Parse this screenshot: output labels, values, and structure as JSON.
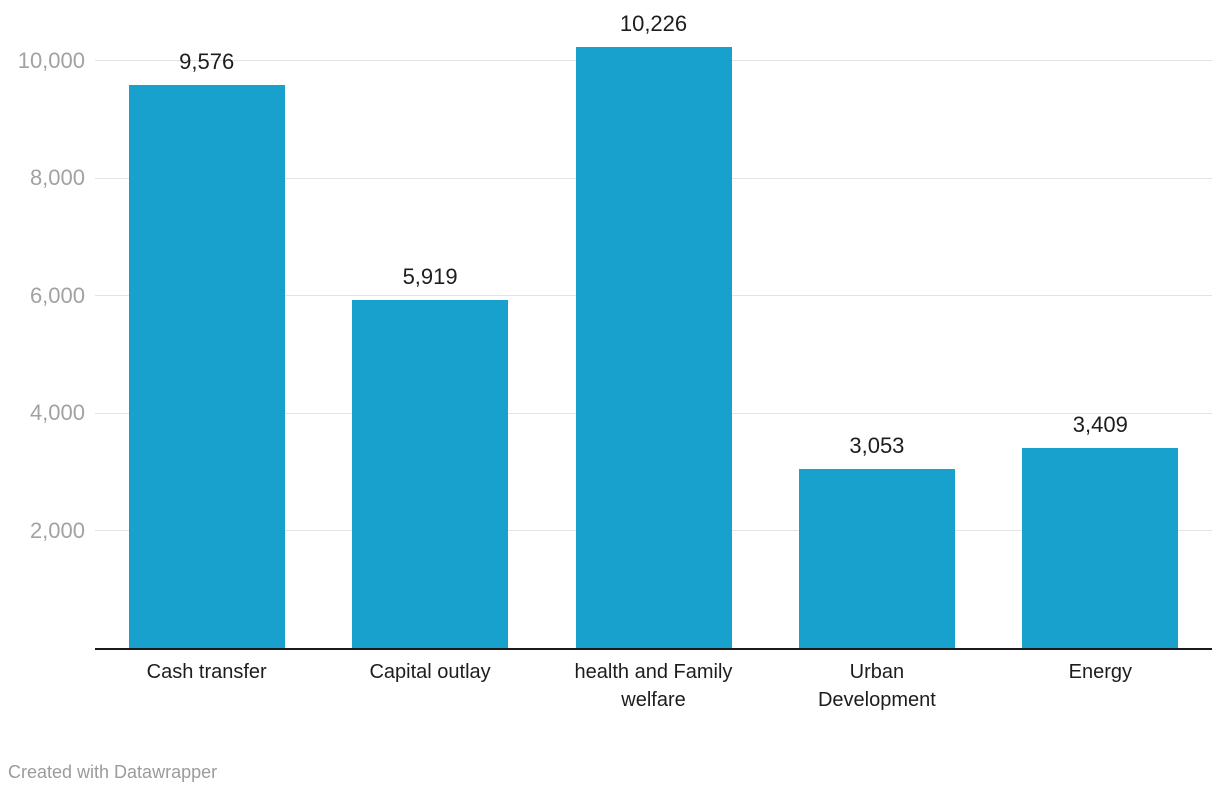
{
  "chart_data": {
    "type": "bar",
    "categories": [
      "Cash transfer",
      "Capital outlay",
      "health and Family\nwelfare",
      "Urban\nDevelopment",
      "Energy"
    ],
    "values": [
      9576,
      5919,
      10226,
      3053,
      3409
    ],
    "value_labels": [
      "9,576",
      "5,919",
      "10,226",
      "3,053",
      "3,409"
    ],
    "y_ticks": [
      2000,
      4000,
      6000,
      8000,
      10000
    ],
    "y_tick_labels": [
      "2,000",
      "4,000",
      "6,000",
      "8,000",
      "10,000"
    ],
    "ylim": [
      0,
      11000
    ],
    "grid": true,
    "legend": "none",
    "title": "",
    "xlabel": "",
    "ylabel": "",
    "bar_color": "#18a1cd",
    "gridline_color": "#e4e4e4",
    "tick_label_color": "#a2a2a2",
    "value_label_color": "#1d1d1d",
    "axis_line_color": "#1a1a1a"
  },
  "footer": {
    "credit": "Created with Datawrapper"
  }
}
